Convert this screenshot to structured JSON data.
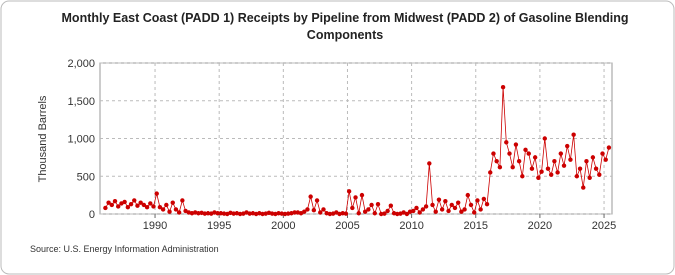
{
  "chart_data": {
    "type": "scatter",
    "title": "Monthly East Coast (PADD 1) Receipts by Pipeline from Midwest (PADD 2) of Gasoline Blending",
    "title_line2": "Components",
    "y_label": "Thousand Barrels",
    "source": "Source: U.S. Energy Information Administration",
    "color": "#cc0000",
    "grid": true,
    "xlim": [
      1985.71,
      2025.62
    ],
    "ylim": [
      0,
      2000
    ],
    "xticks": [
      1990,
      1995,
      2000,
      2005,
      2010,
      2015,
      2020,
      2025
    ],
    "yticks": [
      0,
      {
        "value": 500,
        "label": "500"
      },
      {
        "value": 1000,
        "label": "1,000"
      },
      {
        "value": 1500,
        "label": "1,500"
      },
      {
        "value": 2000,
        "label": "2,000"
      }
    ],
    "x": [
      1986.13,
      1986.38,
      1986.63,
      1986.88,
      1987.13,
      1987.38,
      1987.63,
      1987.88,
      1988.13,
      1988.38,
      1988.63,
      1988.88,
      1989.13,
      1989.38,
      1989.63,
      1989.88,
      1990.13,
      1990.38,
      1990.63,
      1990.88,
      1991.13,
      1991.38,
      1991.63,
      1991.88,
      1992.13,
      1992.38,
      1992.63,
      1992.88,
      1993.13,
      1993.38,
      1993.63,
      1993.88,
      1994.13,
      1994.38,
      1994.63,
      1994.88,
      1995.13,
      1995.38,
      1995.63,
      1995.88,
      1996.13,
      1996.38,
      1996.63,
      1996.88,
      1997.13,
      1997.38,
      1997.63,
      1997.88,
      1998.13,
      1998.38,
      1998.63,
      1998.88,
      1999.13,
      1999.38,
      1999.63,
      1999.88,
      2000.13,
      2000.38,
      2000.63,
      2000.88,
      2001.13,
      2001.38,
      2001.63,
      2001.88,
      2002.13,
      2002.38,
      2002.63,
      2002.88,
      2003.13,
      2003.38,
      2003.63,
      2003.88,
      2004.13,
      2004.38,
      2004.63,
      2004.88,
      2005.13,
      2005.38,
      2005.63,
      2005.88,
      2006.13,
      2006.38,
      2006.63,
      2006.88,
      2007.13,
      2007.38,
      2007.63,
      2007.88,
      2008.13,
      2008.38,
      2008.63,
      2008.88,
      2009.13,
      2009.38,
      2009.63,
      2009.88,
      2010.13,
      2010.38,
      2010.63,
      2010.88,
      2011.13,
      2011.38,
      2011.63,
      2011.88,
      2012.13,
      2012.38,
      2012.63,
      2012.88,
      2013.13,
      2013.38,
      2013.63,
      2013.88,
      2014.13,
      2014.38,
      2014.63,
      2014.88,
      2015.13,
      2015.38,
      2015.63,
      2015.88,
      2016.13,
      2016.38,
      2016.63,
      2016.88,
      2017.13,
      2017.38,
      2017.63,
      2017.88,
      2018.13,
      2018.38,
      2018.63,
      2018.88,
      2019.13,
      2019.38,
      2019.63,
      2019.88,
      2020.13,
      2020.38,
      2020.63,
      2020.88,
      2021.13,
      2021.38,
      2021.63,
      2021.88,
      2022.13,
      2022.38,
      2022.63,
      2022.88,
      2023.13,
      2023.38,
      2023.63,
      2023.88,
      2024.13,
      2024.38,
      2024.63,
      2024.88,
      2025.13,
      2025.38
    ],
    "values": [
      80,
      150,
      120,
      170,
      100,
      140,
      160,
      90,
      130,
      180,
      110,
      150,
      120,
      90,
      140,
      100,
      270,
      90,
      60,
      120,
      30,
      150,
      60,
      20,
      180,
      40,
      20,
      10,
      20,
      10,
      15,
      5,
      10,
      5,
      20,
      10,
      10,
      5,
      0,
      15,
      5,
      10,
      0,
      5,
      20,
      5,
      10,
      0,
      10,
      0,
      5,
      15,
      5,
      0,
      10,
      5,
      0,
      5,
      10,
      20,
      20,
      10,
      30,
      60,
      230,
      50,
      180,
      20,
      60,
      10,
      0,
      5,
      20,
      0,
      10,
      5,
      300,
      80,
      220,
      10,
      250,
      30,
      60,
      120,
      10,
      130,
      0,
      5,
      40,
      110,
      10,
      0,
      5,
      20,
      0,
      30,
      40,
      80,
      20,
      60,
      100,
      670,
      120,
      30,
      190,
      60,
      170,
      40,
      120,
      80,
      150,
      30,
      60,
      250,
      120,
      20,
      180,
      60,
      200,
      130,
      550,
      800,
      700,
      620,
      1680,
      950,
      800,
      620,
      920,
      700,
      500,
      850,
      800,
      600,
      750,
      480,
      560,
      1000,
      600,
      520,
      700,
      550,
      800,
      640,
      900,
      720,
      1050,
      500,
      600,
      350,
      700,
      480,
      750,
      600,
      520,
      800,
      720,
      880
    ]
  }
}
